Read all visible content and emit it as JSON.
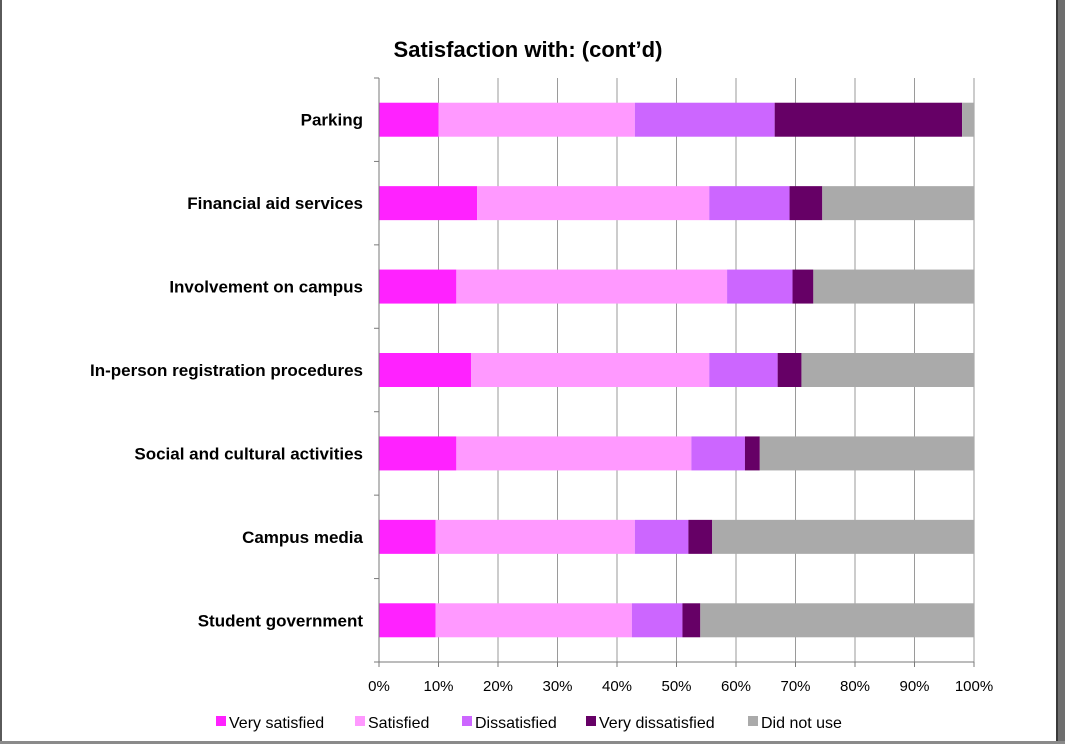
{
  "chart_data": {
    "type": "bar",
    "orientation": "horizontal",
    "stacked": true,
    "title": "Satisfaction with: (cont’d)",
    "categories": [
      "Parking",
      "Financial aid services",
      "Involvement on campus",
      "In-person registration procedures",
      "Social and cultural activities",
      "Campus media",
      "Student government"
    ],
    "series": [
      {
        "name": "Very satisfied",
        "color": "#ff22ff",
        "values": [
          10,
          16.5,
          13,
          15.5,
          13,
          9.5,
          9.5
        ]
      },
      {
        "name": "Satisfied",
        "color": "#ff99ff",
        "values": [
          33,
          39,
          45.5,
          40,
          39.5,
          33.5,
          33
        ]
      },
      {
        "name": "Dissatisfied",
        "color": "#cc66ff",
        "values": [
          23.5,
          13.5,
          11,
          11.5,
          9,
          9,
          8.5
        ]
      },
      {
        "name": "Very dissatisfied",
        "color": "#660066",
        "values": [
          31.5,
          5.5,
          3.5,
          4,
          2.5,
          4,
          3
        ]
      },
      {
        "name": "Did not use",
        "color": "#aaaaaa",
        "values": [
          2,
          25.5,
          27,
          29,
          36,
          44,
          46
        ]
      }
    ],
    "x_ticks": [
      "0%",
      "10%",
      "20%",
      "30%",
      "40%",
      "50%",
      "60%",
      "70%",
      "80%",
      "90%",
      "100%"
    ],
    "xlim": [
      0,
      100
    ],
    "grid": "vertical",
    "legend": "bottom"
  }
}
